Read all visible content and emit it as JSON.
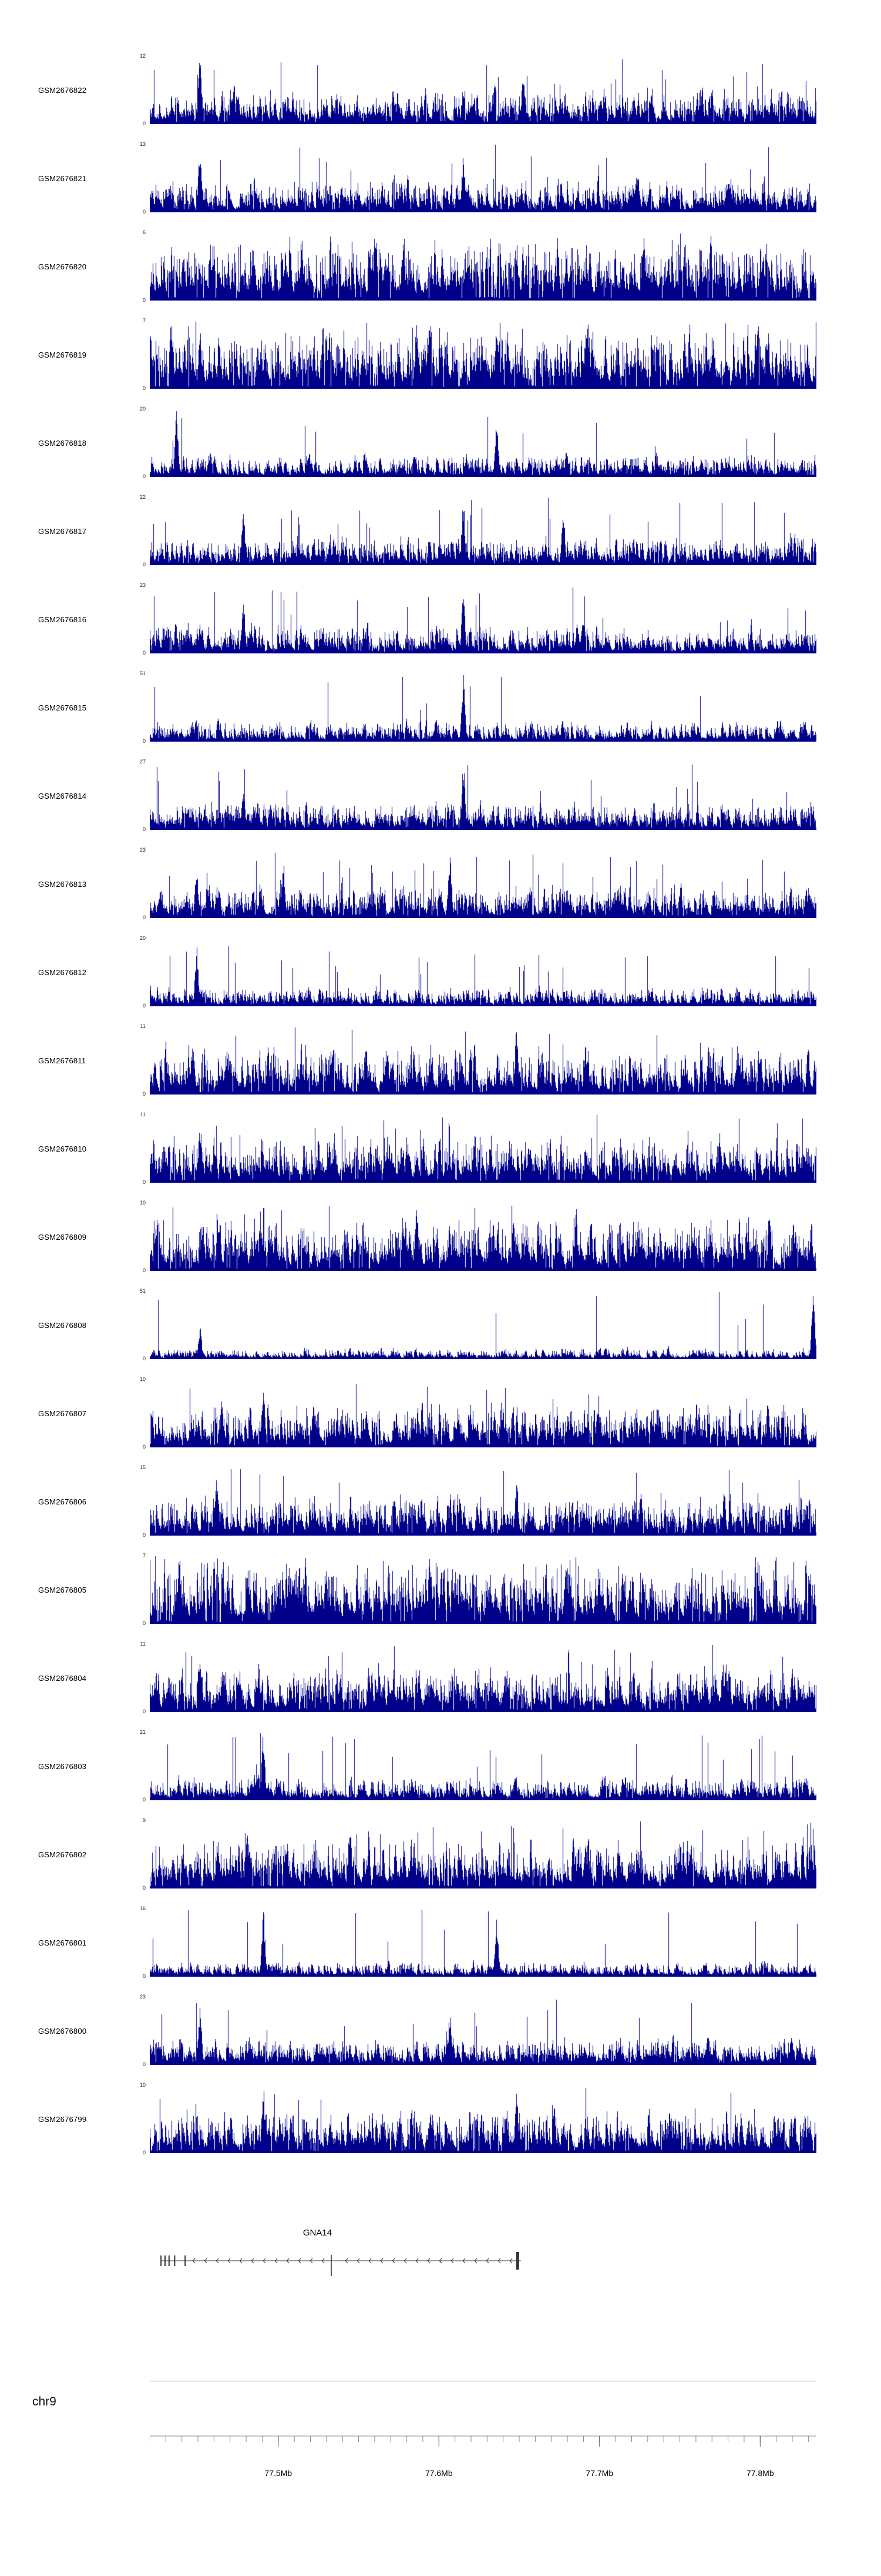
{
  "figure": {
    "background_color": "#ffffff",
    "signal_color": "#00008B",
    "gene_color": "#333333",
    "axis_color": "#888888",
    "text_color": "#000000"
  },
  "chart_data": {
    "type": "area",
    "subtype": "genome-browser-coverage-tracks",
    "title": "",
    "chromosome": "chr9",
    "legend": "none",
    "grid": false,
    "axis": {
      "x_range_mb": [
        77.42,
        77.835
      ],
      "minor_tick_interval_mb": 0.01,
      "major_ticks": [
        {
          "mb": 77.5,
          "label": "77.5Mb"
        },
        {
          "mb": 77.6,
          "label": "77.6Mb"
        },
        {
          "mb": 77.7,
          "label": "77.7Mb"
        },
        {
          "mb": 77.8,
          "label": "77.8Mb"
        }
      ]
    },
    "gene_track": {
      "gene_name": "GNA14",
      "strand": "-",
      "gene_start_mb": 77.427,
      "gene_end_mb": 77.651,
      "exons_mb": [
        {
          "pos": 77.427,
          "size": "small"
        },
        {
          "pos": 77.4295,
          "size": "small"
        },
        {
          "pos": 77.432,
          "size": "small"
        },
        {
          "pos": 77.4355,
          "size": "small"
        },
        {
          "pos": 77.442,
          "size": "small"
        },
        {
          "pos": 77.533,
          "size": "medium"
        },
        {
          "pos": 77.649,
          "size": "large"
        }
      ]
    },
    "tracks": [
      {
        "label": "GSM2676822",
        "y_max": 12,
        "y_min": 0,
        "render": {
          "seed": 101,
          "density": 0.4,
          "spike_rate": 0.02,
          "peaks": [
            [
              0.075,
              1.0
            ],
            [
              0.56,
              0.8
            ]
          ]
        }
      },
      {
        "label": "GSM2676821",
        "y_max": 13,
        "y_min": 0,
        "render": {
          "seed": 102,
          "density": 0.38,
          "spike_rate": 0.02,
          "peaks": [
            [
              0.075,
              1.0
            ],
            [
              0.47,
              0.85
            ]
          ]
        }
      },
      {
        "label": "GSM2676820",
        "y_max": 6,
        "y_min": 0,
        "render": {
          "seed": 103,
          "density": 0.72,
          "spike_rate": 0.03,
          "peaks": [
            [
              0.38,
              1.0
            ]
          ]
        }
      },
      {
        "label": "GSM2676819",
        "y_max": 7,
        "y_min": 0,
        "render": {
          "seed": 104,
          "density": 0.68,
          "spike_rate": 0.03,
          "peaks": [
            [
              0.075,
              0.9
            ],
            [
              0.4,
              1.0
            ],
            [
              0.52,
              0.95
            ]
          ]
        }
      },
      {
        "label": "GSM2676818",
        "y_max": 20,
        "y_min": 0,
        "render": {
          "seed": 105,
          "density": 0.26,
          "spike_rate": 0.015,
          "peaks": [
            [
              0.04,
              1.0
            ],
            [
              0.52,
              0.85
            ]
          ]
        }
      },
      {
        "label": "GSM2676817",
        "y_max": 22,
        "y_min": 0,
        "render": {
          "seed": 106,
          "density": 0.34,
          "spike_rate": 0.018,
          "peaks": [
            [
              0.14,
              0.85
            ],
            [
              0.47,
              1.0
            ],
            [
              0.62,
              0.8
            ]
          ]
        }
      },
      {
        "label": "GSM2676816",
        "y_max": 23,
        "y_min": 0,
        "render": {
          "seed": 107,
          "density": 0.34,
          "spike_rate": 0.018,
          "peaks": [
            [
              0.14,
              0.8
            ],
            [
              0.47,
              1.0
            ]
          ]
        }
      },
      {
        "label": "GSM2676815",
        "y_max": 51,
        "y_min": 0,
        "render": {
          "seed": 108,
          "density": 0.24,
          "spike_rate": 0.012,
          "peaks": [
            [
              0.47,
              1.0
            ]
          ]
        }
      },
      {
        "label": "GSM2676814",
        "y_max": 27,
        "y_min": 0,
        "render": {
          "seed": 109,
          "density": 0.32,
          "spike_rate": 0.015,
          "peaks": [
            [
              0.14,
              0.7
            ],
            [
              0.47,
              1.0
            ]
          ]
        }
      },
      {
        "label": "GSM2676813",
        "y_max": 23,
        "y_min": 0,
        "render": {
          "seed": 110,
          "density": 0.38,
          "spike_rate": 0.018,
          "peaks": [
            [
              0.07,
              0.8
            ],
            [
              0.2,
              0.9
            ],
            [
              0.45,
              1.0
            ]
          ]
        }
      },
      {
        "label": "GSM2676812",
        "y_max": 20,
        "y_min": 0,
        "render": {
          "seed": 111,
          "density": 0.22,
          "spike_rate": 0.012,
          "peaks": [
            [
              0.07,
              0.9
            ]
          ]
        }
      },
      {
        "label": "GSM2676811",
        "y_max": 11,
        "y_min": 0,
        "render": {
          "seed": 112,
          "density": 0.55,
          "spike_rate": 0.025,
          "peaks": [
            [
              0.55,
              1.0
            ]
          ]
        }
      },
      {
        "label": "GSM2676810",
        "y_max": 11,
        "y_min": 0,
        "render": {
          "seed": 113,
          "density": 0.55,
          "spike_rate": 0.025,
          "peaks": [
            [
              0.075,
              0.9
            ]
          ]
        }
      },
      {
        "label": "GSM2676809",
        "y_max": 10,
        "y_min": 0,
        "render": {
          "seed": 114,
          "density": 0.6,
          "spike_rate": 0.025,
          "peaks": [
            [
              0.4,
              1.0
            ]
          ]
        }
      },
      {
        "label": "GSM2676808",
        "y_max": 51,
        "y_min": 0,
        "render": {
          "seed": 115,
          "density": 0.13,
          "spike_rate": 0.008,
          "peaks": [
            [
              0.075,
              0.5
            ],
            [
              0.995,
              1.0
            ]
          ]
        }
      },
      {
        "label": "GSM2676807",
        "y_max": 10,
        "y_min": 0,
        "render": {
          "seed": 116,
          "density": 0.5,
          "spike_rate": 0.02,
          "peaks": [
            [
              0.17,
              1.0
            ]
          ]
        }
      },
      {
        "label": "GSM2676806",
        "y_max": 15,
        "y_min": 0,
        "render": {
          "seed": 117,
          "density": 0.46,
          "spike_rate": 0.02,
          "peaks": [
            [
              0.1,
              0.9
            ],
            [
              0.55,
              0.85
            ]
          ]
        }
      },
      {
        "label": "GSM2676805",
        "y_max": 7,
        "y_min": 0,
        "render": {
          "seed": 118,
          "density": 0.72,
          "spike_rate": 0.03,
          "peaks": [
            [
              0.42,
              1.0
            ]
          ]
        }
      },
      {
        "label": "GSM2676804",
        "y_max": 11,
        "y_min": 0,
        "render": {
          "seed": 119,
          "density": 0.5,
          "spike_rate": 0.02,
          "peaks": [
            [
              0.075,
              0.9
            ]
          ]
        }
      },
      {
        "label": "GSM2676803",
        "y_max": 21,
        "y_min": 0,
        "render": {
          "seed": 120,
          "density": 0.27,
          "spike_rate": 0.015,
          "peaks": [
            [
              0.17,
              1.0
            ]
          ]
        }
      },
      {
        "label": "GSM2676802",
        "y_max": 9,
        "y_min": 0,
        "render": {
          "seed": 121,
          "density": 0.55,
          "spike_rate": 0.03,
          "peaks": [
            [
              0.3,
              1.0
            ]
          ]
        }
      },
      {
        "label": "GSM2676801",
        "y_max": 16,
        "y_min": 0,
        "render": {
          "seed": 122,
          "density": 0.17,
          "spike_rate": 0.01,
          "peaks": [
            [
              0.17,
              1.0
            ],
            [
              0.52,
              0.85
            ]
          ]
        }
      },
      {
        "label": "GSM2676800",
        "y_max": 23,
        "y_min": 0,
        "render": {
          "seed": 123,
          "density": 0.32,
          "spike_rate": 0.015,
          "peaks": [
            [
              0.075,
              0.9
            ],
            [
              0.45,
              0.8
            ]
          ]
        }
      },
      {
        "label": "GSM2676799",
        "y_max": 10,
        "y_min": 0,
        "render": {
          "seed": 124,
          "density": 0.5,
          "spike_rate": 0.02,
          "peaks": [
            [
              0.17,
              1.0
            ],
            [
              0.55,
              0.9
            ]
          ]
        }
      }
    ]
  }
}
